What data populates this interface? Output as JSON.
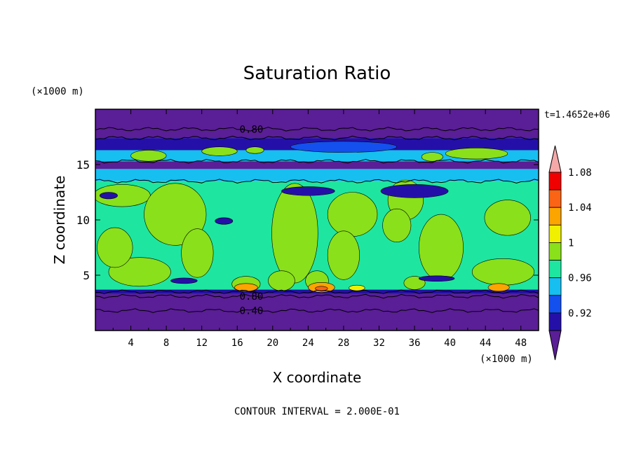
{
  "chart_data": {
    "type": "heatmap",
    "title": "Saturation Ratio",
    "xlabel": "X coordinate",
    "ylabel": "Z coordinate",
    "x_unit": "(×1000 m)",
    "y_unit": "(×1000 m)",
    "time_label": "t=1.4652e+06",
    "footer": "CONTOUR INTERVAL = 2.000E-01",
    "xlim": [
      0,
      50
    ],
    "ylim": [
      0,
      20
    ],
    "x_ticks": [
      4,
      8,
      12,
      16,
      20,
      24,
      28,
      32,
      36,
      40,
      44,
      48
    ],
    "y_ticks": [
      5,
      10,
      15
    ],
    "contour_labels": [
      {
        "text": "0.80",
        "x": 17.6,
        "z": 18.2
      },
      {
        "text": "0.80",
        "x": 17.6,
        "z": 3.1
      },
      {
        "text": "0.40",
        "x": 17.6,
        "z": 1.8
      }
    ],
    "colorbar": {
      "levels": [
        0.92,
        0.94,
        0.96,
        0.98,
        1.0,
        1.02,
        1.04,
        1.06,
        1.08
      ],
      "tick_labels": [
        "0.92",
        "0.96",
        "1",
        "1.04",
        "1.08"
      ],
      "colors": [
        "#5a1e96",
        "#2410a8",
        "#1450ee",
        "#16bff0",
        "#1ee6a0",
        "#8ae01a",
        "#f0f000",
        "#fca400",
        "#fa6414",
        "#f00000",
        "#f4a8a8"
      ]
    },
    "bands": [
      {
        "z0": 0.0,
        "z1": 3.3,
        "color": "#5a1e96"
      },
      {
        "z0": 3.3,
        "z1": 3.7,
        "color": "#2410a8"
      },
      {
        "z0": 3.7,
        "z1": 13.5,
        "color": "#1ee6a0"
      },
      {
        "z0": 13.5,
        "z1": 14.6,
        "color": "#16bff0"
      },
      {
        "z0": 14.6,
        "z1": 15.3,
        "color": "#5a1e96"
      },
      {
        "z0": 15.3,
        "z1": 16.3,
        "color": "#16bff0"
      },
      {
        "z0": 16.3,
        "z1": 17.4,
        "color": "#2410a8"
      },
      {
        "z0": 17.4,
        "z1": 20.0,
        "color": "#5a1e96"
      }
    ],
    "blobs": [
      {
        "x": 3,
        "z": 12.2,
        "rx": 3.2,
        "rz": 1.0,
        "color": "#8ae01a"
      },
      {
        "x": 9,
        "z": 10.5,
        "rx": 3.5,
        "rz": 2.8,
        "color": "#8ae01a"
      },
      {
        "x": 11.5,
        "z": 7,
        "rx": 1.8,
        "rz": 2.2,
        "color": "#8ae01a"
      },
      {
        "x": 5,
        "z": 5.3,
        "rx": 3.5,
        "rz": 1.3,
        "color": "#8ae01a"
      },
      {
        "x": 2.2,
        "z": 7.5,
        "rx": 2.0,
        "rz": 1.8,
        "color": "#8ae01a"
      },
      {
        "x": 22.5,
        "z": 8.8,
        "rx": 2.6,
        "rz": 4.5,
        "color": "#8ae01a"
      },
      {
        "x": 29,
        "z": 10.5,
        "rx": 2.8,
        "rz": 2.0,
        "color": "#8ae01a"
      },
      {
        "x": 28,
        "z": 6.8,
        "rx": 1.8,
        "rz": 2.2,
        "color": "#8ae01a"
      },
      {
        "x": 35,
        "z": 11.8,
        "rx": 2.0,
        "rz": 1.8,
        "color": "#8ae01a"
      },
      {
        "x": 34,
        "z": 9.5,
        "rx": 1.6,
        "rz": 1.5,
        "color": "#8ae01a"
      },
      {
        "x": 39,
        "z": 7.5,
        "rx": 2.5,
        "rz": 3.0,
        "color": "#8ae01a"
      },
      {
        "x": 46.5,
        "z": 10.2,
        "rx": 2.6,
        "rz": 1.6,
        "color": "#8ae01a"
      },
      {
        "x": 46,
        "z": 5.3,
        "rx": 3.5,
        "rz": 1.2,
        "color": "#8ae01a"
      },
      {
        "x": 25,
        "z": 4.5,
        "rx": 1.3,
        "rz": 0.9,
        "color": "#8ae01a"
      },
      {
        "x": 17,
        "z": 4.2,
        "rx": 1.6,
        "rz": 0.7,
        "color": "#8ae01a"
      },
      {
        "x": 21,
        "z": 4.5,
        "rx": 1.5,
        "rz": 0.9,
        "color": "#8ae01a"
      },
      {
        "x": 36,
        "z": 4.3,
        "rx": 1.2,
        "rz": 0.6,
        "color": "#8ae01a"
      },
      {
        "x": 6,
        "z": 15.8,
        "rx": 2.0,
        "rz": 0.5,
        "color": "#8ae01a"
      },
      {
        "x": 14,
        "z": 16.2,
        "rx": 2.0,
        "rz": 0.4,
        "color": "#8ae01a"
      },
      {
        "x": 43,
        "z": 16.0,
        "rx": 3.5,
        "rz": 0.5,
        "color": "#8ae01a"
      },
      {
        "x": 38,
        "z": 15.7,
        "rx": 1.2,
        "rz": 0.4,
        "color": "#8ae01a"
      },
      {
        "x": 18,
        "z": 16.3,
        "rx": 1.0,
        "rz": 0.3,
        "color": "#8ae01a"
      },
      {
        "x": 36,
        "z": 12.6,
        "rx": 3.8,
        "rz": 0.6,
        "color": "#2410a8"
      },
      {
        "x": 24,
        "z": 12.6,
        "rx": 3.0,
        "rz": 0.4,
        "color": "#2410a8"
      },
      {
        "x": 14.5,
        "z": 9.9,
        "rx": 1.0,
        "rz": 0.3,
        "color": "#2410a8"
      },
      {
        "x": 1.5,
        "z": 12.2,
        "rx": 1.0,
        "rz": 0.3,
        "color": "#2410a8"
      },
      {
        "x": 28,
        "z": 16.6,
        "rx": 6.0,
        "rz": 0.5,
        "color": "#1450ee"
      },
      {
        "x": 10,
        "z": 4.5,
        "rx": 1.5,
        "rz": 0.25,
        "color": "#2410a8"
      },
      {
        "x": 38.5,
        "z": 4.7,
        "rx": 2.0,
        "rz": 0.25,
        "color": "#2410a8"
      },
      {
        "x": 17,
        "z": 3.9,
        "rx": 1.3,
        "rz": 0.35,
        "color": "#fca400"
      },
      {
        "x": 25.5,
        "z": 3.9,
        "rx": 1.5,
        "rz": 0.45,
        "color": "#fca400"
      },
      {
        "x": 45.5,
        "z": 3.9,
        "rx": 1.2,
        "rz": 0.35,
        "color": "#fca400"
      },
      {
        "x": 29.5,
        "z": 3.85,
        "rx": 0.9,
        "rz": 0.25,
        "color": "#f0f000"
      },
      {
        "x": 25.5,
        "z": 3.8,
        "rx": 0.7,
        "rz": 0.2,
        "color": "#fa6414"
      }
    ]
  }
}
